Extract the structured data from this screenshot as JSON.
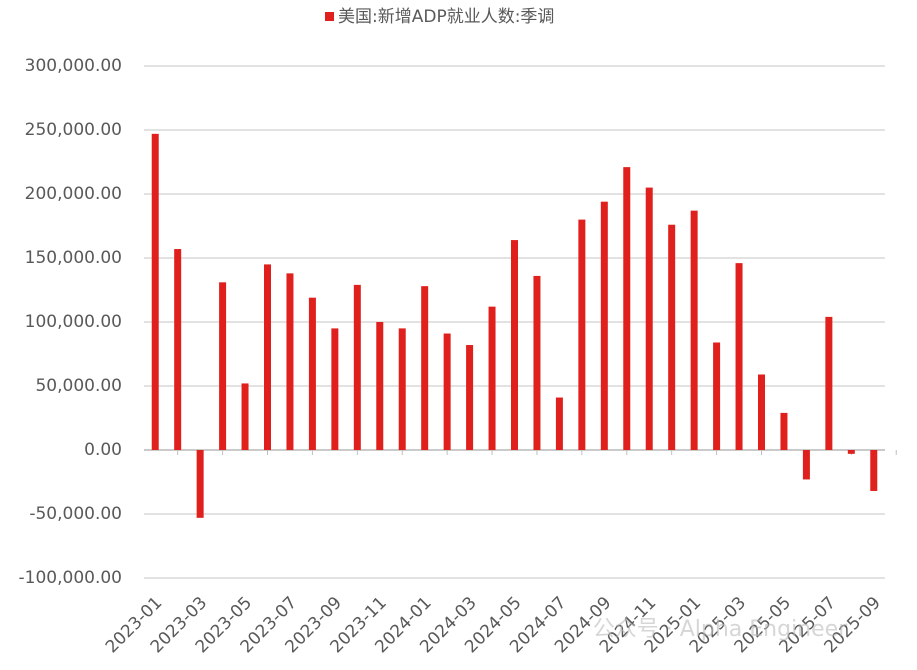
{
  "chart_data": {
    "type": "bar",
    "legend": "美国:新增ADP就业人数:季调",
    "legend_position": "top",
    "color": "#e0201d",
    "categories": [
      "2023-01",
      null,
      "2023-03",
      null,
      "2023-05",
      null,
      "2023-07",
      null,
      "2023-09",
      null,
      "2023-11",
      null,
      "2024-01",
      null,
      "2024-03",
      null,
      "2024-05",
      null,
      "2024-07",
      null,
      "2024-09",
      null,
      "2024-11",
      null,
      "2025-01",
      null,
      "2025-03",
      null,
      "2025-05",
      null,
      "2025-07",
      null,
      "2025-09"
    ],
    "values": [
      247000,
      157000,
      -53000,
      131000,
      52000,
      145000,
      138000,
      119000,
      95000,
      129000,
      100000,
      95000,
      128000,
      91000,
      82000,
      112000,
      164000,
      136000,
      41000,
      180000,
      194000,
      221000,
      205000,
      176000,
      187000,
      84000,
      146000,
      59000,
      29000,
      -23000,
      104000,
      -3000,
      -32000
    ],
    "ylim": [
      -100000,
      300000
    ],
    "yticks": [
      {
        "value": -100000,
        "label": "-100,000.00"
      },
      {
        "value": -50000,
        "label": "-50,000.00"
      },
      {
        "value": 0,
        "label": "0.00"
      },
      {
        "value": 50000,
        "label": "50,000.00"
      },
      {
        "value": 100000,
        "label": "100,000.00"
      },
      {
        "value": 150000,
        "label": "150,000.00"
      },
      {
        "value": 200000,
        "label": "200,000.00"
      },
      {
        "value": 250000,
        "label": "250,000.00"
      },
      {
        "value": 300000,
        "label": "300,000.00"
      }
    ],
    "grid": true,
    "watermark": "公众号 · Alpha Engineer"
  }
}
